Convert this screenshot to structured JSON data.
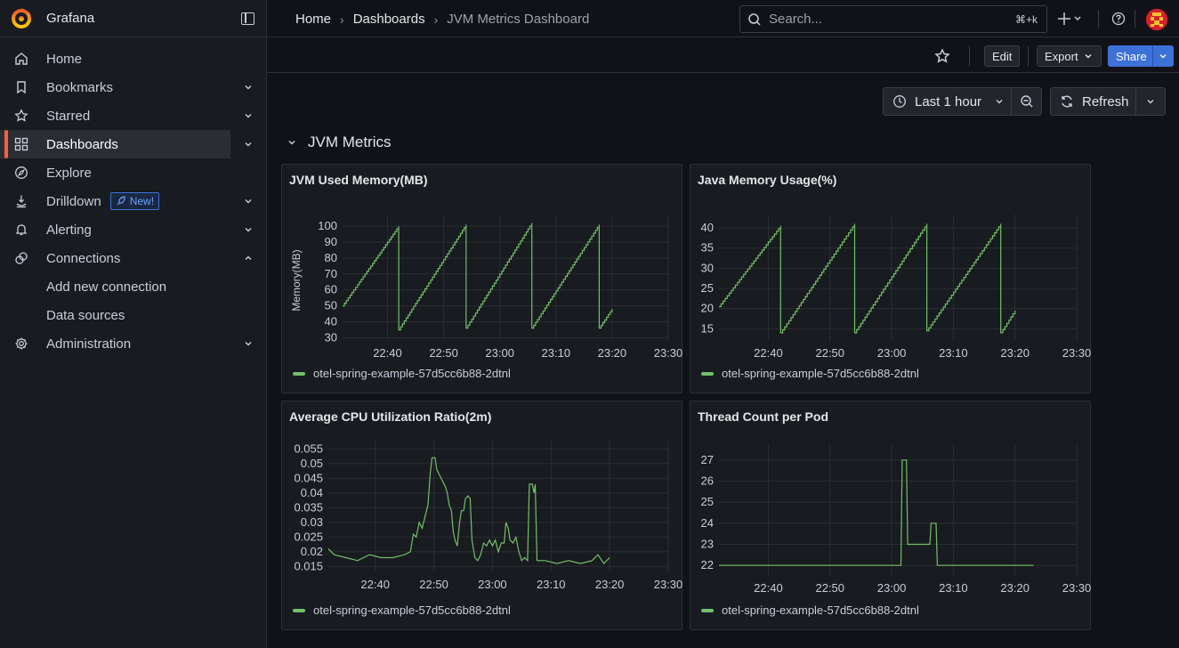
{
  "app": {
    "name": "Grafana"
  },
  "sidebar": {
    "items": [
      {
        "label": "Home",
        "icon": "home-icon",
        "chevron": false
      },
      {
        "label": "Bookmarks",
        "icon": "bookmark-icon",
        "chevron": "down"
      },
      {
        "label": "Starred",
        "icon": "star-icon",
        "chevron": "down"
      },
      {
        "label": "Dashboards",
        "icon": "apps-icon",
        "chevron": "down",
        "active": true
      },
      {
        "label": "Explore",
        "icon": "compass-icon",
        "chevron": false
      },
      {
        "label": "Drilldown",
        "icon": "drilldown-icon",
        "chevron": "down",
        "badge": "New!"
      },
      {
        "label": "Alerting",
        "icon": "bell-icon",
        "chevron": "down"
      },
      {
        "label": "Connections",
        "icon": "connections-icon",
        "chevron": "up"
      }
    ],
    "subitems": [
      "Add new connection",
      "Data sources"
    ],
    "admin": {
      "label": "Administration",
      "icon": "gear-icon"
    }
  },
  "breadcrumb": {
    "home": "Home",
    "dashboards": "Dashboards",
    "current": "JVM Metrics Dashboard"
  },
  "search": {
    "placeholder": "Search...",
    "shortcut": "⌘+k"
  },
  "toolbar": {
    "edit": "Edit",
    "export": "Export",
    "share": "Share"
  },
  "time": {
    "range": "Last 1 hour",
    "refresh": "Refresh"
  },
  "row": {
    "title": "JVM Metrics"
  },
  "colors": {
    "series": "#73bf69",
    "accent": "#3d71d9",
    "active": "#f55f3e"
  },
  "panels": [
    {
      "title": "JVM Used Memory(MB)",
      "legend": "otel-spring-example-57d5cc6b88-2dtnl",
      "chart_data": {
        "type": "line",
        "ylabel": "Memory(MB)",
        "x_ticks": [
          "22:40",
          "22:50",
          "23:00",
          "23:10",
          "23:20",
          "23:30"
        ],
        "y_ticks": [
          30,
          40,
          50,
          60,
          70,
          80,
          90,
          100
        ],
        "ylim": [
          28,
          104
        ],
        "xlim_minutes": [
          -28,
          30
        ],
        "series": [
          {
            "name": "otel-spring-example-57d5cc6b88-2dtnl",
            "points": [
              [
                -28,
                50
              ],
              [
                -18,
                100
              ],
              [
                -18,
                35
              ],
              [
                -6,
                101
              ],
              [
                -6,
                36
              ],
              [
                5.7,
                102
              ],
              [
                5.7,
                36
              ],
              [
                17.7,
                101
              ],
              [
                17.7,
                36
              ],
              [
                20,
                48
              ]
            ]
          }
        ]
      }
    },
    {
      "title": "Java Memory Usage(%)",
      "legend": "otel-spring-example-57d5cc6b88-2dtnl",
      "chart_data": {
        "type": "line",
        "ylabel": "",
        "x_ticks": [
          "22:40",
          "22:50",
          "23:00",
          "23:10",
          "23:20",
          "23:30"
        ],
        "y_ticks": [
          15,
          20,
          25,
          30,
          35,
          40
        ],
        "ylim": [
          12,
          42
        ],
        "xlim_minutes": [
          -28,
          30
        ],
        "series": [
          {
            "name": "otel-spring-example-57d5cc6b88-2dtnl",
            "points": [
              [
                -28,
                20.5
              ],
              [
                -18,
                40.5
              ],
              [
                -18,
                14
              ],
              [
                -6,
                41
              ],
              [
                -6,
                14
              ],
              [
                5.7,
                41
              ],
              [
                5.7,
                14.5
              ],
              [
                17.7,
                41
              ],
              [
                17.7,
                14
              ],
              [
                20,
                19.5
              ]
            ]
          }
        ]
      }
    },
    {
      "title": "Average CPU Utilization Ratio(2m)",
      "legend": "otel-spring-example-57d5cc6b88-2dtnl",
      "chart_data": {
        "type": "line",
        "ylabel": "",
        "x_ticks": [
          "22:40",
          "22:50",
          "23:00",
          "23:10",
          "23:20",
          "23:30"
        ],
        "y_ticks": [
          0.015,
          0.02,
          0.025,
          0.03,
          0.035,
          0.04,
          0.045,
          0.05,
          0.055
        ],
        "ylim": [
          0.013,
          0.056
        ],
        "xlim_minutes": [
          -28,
          30
        ],
        "series": [
          {
            "name": "otel-spring-example-57d5cc6b88-2dtnl",
            "points": [
              [
                -28,
                0.021
              ],
              [
                -27,
                0.019
              ],
              [
                -25,
                0.018
              ],
              [
                -23,
                0.017
              ],
              [
                -21,
                0.019
              ],
              [
                -19,
                0.018
              ],
              [
                -17,
                0.018
              ],
              [
                -15,
                0.019
              ],
              [
                -14,
                0.02
              ],
              [
                -13.5,
                0.026
              ],
              [
                -13,
                0.025
              ],
              [
                -12.5,
                0.03
              ],
              [
                -12,
                0.028
              ],
              [
                -11.5,
                0.032
              ],
              [
                -11,
                0.036
              ],
              [
                -10.6,
                0.047
              ],
              [
                -10.3,
                0.052
              ],
              [
                -9.8,
                0.052
              ],
              [
                -9.5,
                0.048
              ],
              [
                -9,
                0.046
              ],
              [
                -8.5,
                0.044
              ],
              [
                -8,
                0.042
              ],
              [
                -7.7,
                0.04
              ],
              [
                -7.4,
                0.036
              ],
              [
                -7,
                0.034
              ],
              [
                -6.7,
                0.027
              ],
              [
                -6.4,
                0.024
              ],
              [
                -6,
                0.022
              ],
              [
                -5.6,
                0.03
              ],
              [
                -5.3,
                0.034
              ],
              [
                -4.9,
                0.034
              ],
              [
                -4.6,
                0.038
              ],
              [
                -4.2,
                0.039
              ],
              [
                -3.8,
                0.038
              ],
              [
                -3.5,
                0.024
              ],
              [
                -3,
                0.018
              ],
              [
                -2.5,
                0.017
              ],
              [
                -2,
                0.019
              ],
              [
                -1.5,
                0.023
              ],
              [
                -1,
                0.022
              ],
              [
                -0.5,
                0.024
              ],
              [
                0,
                0.022
              ],
              [
                0.5,
                0.024
              ],
              [
                1,
                0.02
              ],
              [
                1.5,
                0.023
              ],
              [
                2,
                0.023
              ],
              [
                2.3,
                0.03
              ],
              [
                2.7,
                0.028
              ],
              [
                3,
                0.024
              ],
              [
                3.5,
                0.023
              ],
              [
                4,
                0.025
              ],
              [
                4.5,
                0.02
              ],
              [
                5,
                0.017
              ],
              [
                5.5,
                0.018
              ],
              [
                6,
                0.017
              ],
              [
                6.3,
                0.043
              ],
              [
                6.8,
                0.043
              ],
              [
                7.1,
                0.04
              ],
              [
                7.3,
                0.043
              ],
              [
                7.6,
                0.017
              ],
              [
                9,
                0.017
              ],
              [
                11,
                0.016
              ],
              [
                13,
                0.017
              ],
              [
                15,
                0.016
              ],
              [
                17,
                0.017
              ],
              [
                18,
                0.019
              ],
              [
                19,
                0.016
              ],
              [
                20,
                0.018
              ]
            ]
          }
        ]
      }
    },
    {
      "title": "Thread Count per Pod",
      "legend": "otel-spring-example-57d5cc6b88-2dtnl",
      "chart_data": {
        "type": "line",
        "ylabel": "",
        "x_ticks": [
          "22:40",
          "22:50",
          "23:00",
          "23:10",
          "23:20",
          "23:30"
        ],
        "y_ticks": [
          22,
          23,
          24,
          25,
          26,
          27
        ],
        "ylim": [
          21.5,
          27.5
        ],
        "xlim_minutes": [
          -28,
          30
        ],
        "series": [
          {
            "name": "otel-spring-example-57d5cc6b88-2dtnl",
            "points": [
              [
                -28,
                22
              ],
              [
                1.5,
                22
              ],
              [
                1.7,
                27
              ],
              [
                2.4,
                27
              ],
              [
                2.6,
                23
              ],
              [
                6.2,
                23
              ],
              [
                6.4,
                24
              ],
              [
                7.2,
                24
              ],
              [
                7.4,
                22
              ],
              [
                23,
                22
              ]
            ]
          }
        ]
      }
    }
  ]
}
